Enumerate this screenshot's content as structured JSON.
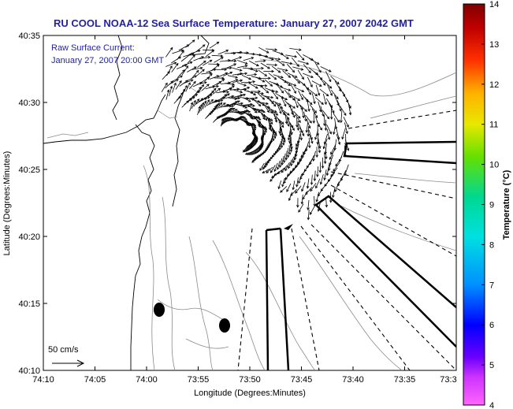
{
  "title": "RU COOL  NOAA-12  Sea Surface Temperature:  January 27, 2007 2042 GMT",
  "annotation": {
    "line1": "Raw Surface Current:",
    "line2": "January 27, 2007 20:00 GMT"
  },
  "scale_label": "50 cm/s",
  "axes": {
    "xlabel": "Longitude (Degrees:Minutes)",
    "ylabel": "Latitude (Degrees:Minutes)",
    "x_ticks": [
      "74:10",
      "74:05",
      "74:00",
      "73:55",
      "73:50",
      "73:45",
      "73:40",
      "73:35",
      "73:3"
    ],
    "y_ticks": [
      "40:35",
      "40:30",
      "40:25",
      "40:20",
      "40:15",
      "40:10"
    ]
  },
  "colorbar": {
    "label": "Temperature (°C)",
    "ticks": [
      "14",
      "13",
      "12",
      "11",
      "10",
      "9",
      "8",
      "7",
      "6",
      "5",
      "4"
    ],
    "min": 4,
    "max": 14,
    "colors": [
      "#ff66ff",
      "#6a00ff",
      "#0000ff",
      "#0090ff",
      "#00e0e0",
      "#00d890",
      "#66e000",
      "#e8e800",
      "#ffb000",
      "#ff3000",
      "#c00000",
      "#800000"
    ]
  }
}
